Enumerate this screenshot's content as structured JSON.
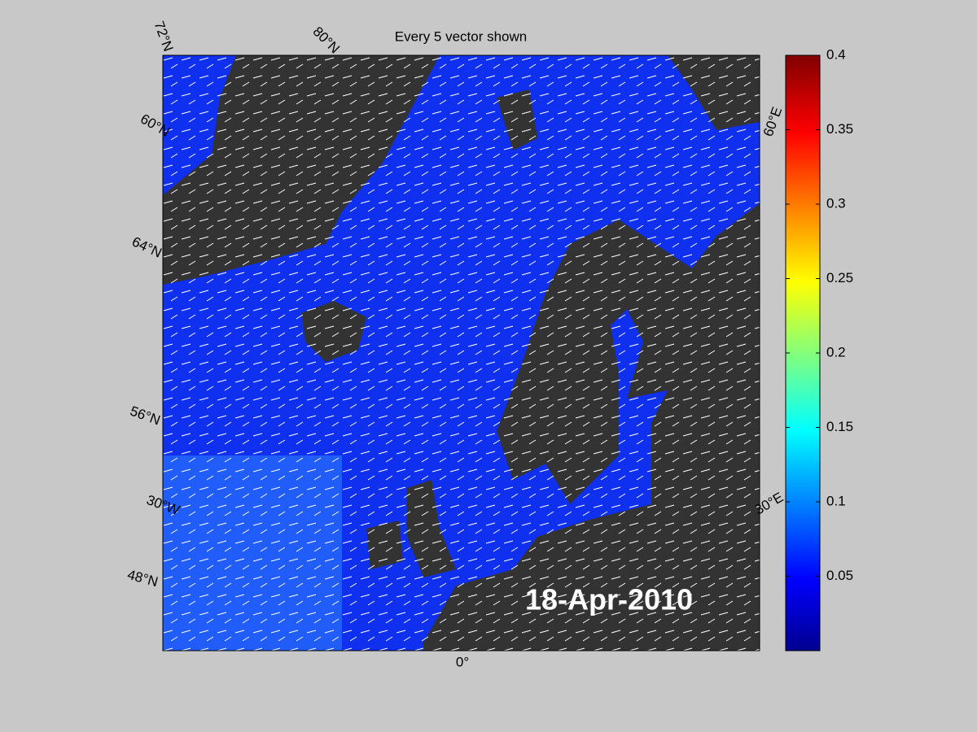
{
  "title": "Every 5 vector shown",
  "date_label": "18-Apr-2010",
  "graticule_labels": [
    "72°N",
    "80°N",
    "60°N",
    "64°N",
    "56°N",
    "48°N",
    "30°W",
    "0°",
    "30°E",
    "60°E"
  ],
  "colorbar": {
    "lim": [
      0,
      0.4
    ],
    "ticks": [
      0.05,
      0.1,
      0.15,
      0.2,
      0.25,
      0.3,
      0.35,
      0.4
    ]
  }
}
